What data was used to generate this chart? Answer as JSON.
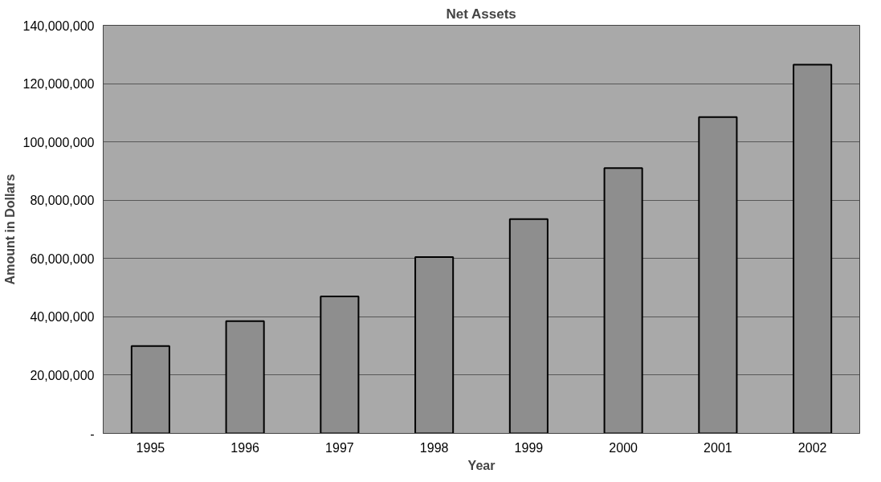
{
  "chart_data": {
    "type": "bar",
    "title": "Net Assets",
    "xlabel": "Year",
    "ylabel": "Amount in Dollars",
    "categories": [
      "1995",
      "1996",
      "1997",
      "1998",
      "1999",
      "2000",
      "2001",
      "2002"
    ],
    "values": [
      30000000,
      38500000,
      47000000,
      60500000,
      73500000,
      91000000,
      108500000,
      126500000
    ],
    "color": "#8e8e8e",
    "ylim": [
      0,
      140000000
    ],
    "yticks": [
      {
        "value": 0,
        "label": "-"
      },
      {
        "value": 20000000,
        "label": "20,000,000"
      },
      {
        "value": 40000000,
        "label": "40,000,000"
      },
      {
        "value": 60000000,
        "label": "60,000,000"
      },
      {
        "value": 80000000,
        "label": "80,000,000"
      },
      {
        "value": 100000000,
        "label": "100,000,000"
      },
      {
        "value": 120000000,
        "label": "120,000,000"
      },
      {
        "value": 140000000,
        "label": "140,000,000"
      }
    ],
    "grid": "y"
  }
}
